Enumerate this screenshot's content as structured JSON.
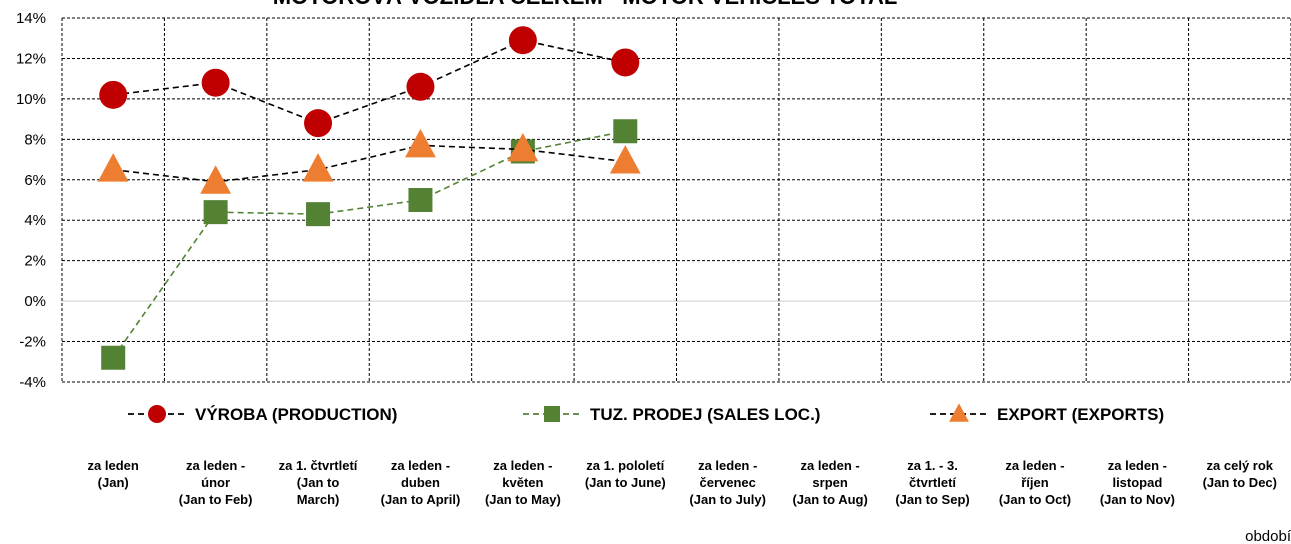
{
  "chart_data": {
    "type": "line",
    "title": "MOTOROVÁ VOZIDLA CELKEM - MOTOR VEHICLES TOTAL",
    "xlabel": "období",
    "ylabel": "",
    "ylim": [
      -4,
      14
    ],
    "ytick_step": 2,
    "y_format": "percent",
    "grid": true,
    "legend_position": "below-plot",
    "categories": [
      [
        "za leden",
        "(Jan)"
      ],
      [
        "za leden -",
        "únor",
        "(Jan to Feb)"
      ],
      [
        "za 1. čtvrtletí",
        "(Jan to",
        "March)"
      ],
      [
        "za leden -",
        "duben",
        "(Jan to April)"
      ],
      [
        "za leden -",
        "květen",
        "(Jan to May)"
      ],
      [
        "za 1. pololetí",
        "(Jan to June)"
      ],
      [
        "za leden -",
        "červenec",
        "(Jan to July)"
      ],
      [
        "za leden -",
        "srpen",
        "(Jan to Aug)"
      ],
      [
        "za 1. - 3.",
        "čtvrtletí",
        "(Jan to Sep)"
      ],
      [
        "za leden -",
        "říjen",
        "(Jan to Oct)"
      ],
      [
        "za leden -",
        "listopad",
        "(Jan to Nov)"
      ],
      [
        "za celý rok",
        "(Jan to Dec)"
      ]
    ],
    "series": [
      {
        "name": "VÝROBA (PRODUCTION)",
        "marker": "circle",
        "color": "#c00000",
        "line_color": "#000000",
        "values": [
          10.2,
          10.8,
          8.8,
          10.6,
          12.9,
          11.8,
          null,
          null,
          null,
          null,
          null,
          null
        ]
      },
      {
        "name": "TUZ. PRODEJ (SALES LOC.)",
        "marker": "square",
        "color": "#548235",
        "line_color": "#548235",
        "values": [
          -2.8,
          4.4,
          4.3,
          5.0,
          7.4,
          8.4,
          null,
          null,
          null,
          null,
          null,
          null
        ]
      },
      {
        "name": "EXPORT (EXPORTS)",
        "marker": "triangle",
        "color": "#ed7d31",
        "line_color": "#000000",
        "values": [
          6.5,
          5.9,
          6.5,
          7.7,
          7.5,
          6.9,
          null,
          null,
          null,
          null,
          null,
          null
        ]
      }
    ]
  }
}
